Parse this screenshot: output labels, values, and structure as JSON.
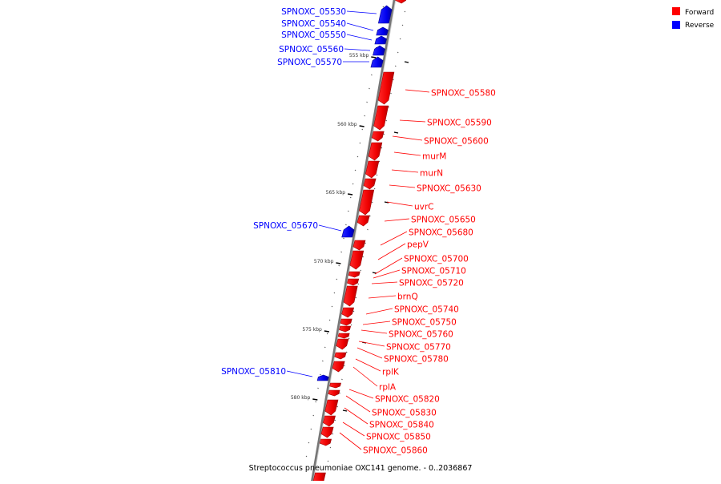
{
  "colors": {
    "forward": "#ff0000",
    "reverse": "#0000ff",
    "forward_dark": "#a00000",
    "reverse_dark": "#000090"
  },
  "legend": {
    "forward": "Forward",
    "reverse": "Reverse"
  },
  "footer": "Streptococcus pneumoniae OXC141 genome. - 0..2036867",
  "ticks": [
    "555 kbp",
    "560 kbp",
    "565 kbp",
    "570 kbp",
    "575 kbp",
    "580 kbp"
  ],
  "reverse_genes": [
    "SPNOXC_05530",
    "SPNOXC_05540",
    "SPNOXC_05550",
    "SPNOXC_05560",
    "SPNOXC_05570",
    "SPNOXC_05670",
    "SPNOXC_05810"
  ],
  "forward_genes": [
    "SPNOXC_05580",
    "SPNOXC_05590",
    "SPNOXC_05600",
    "murM",
    "murN",
    "SPNOXC_05630",
    "uvrC",
    "SPNOXC_05650",
    "SPNOXC_05680",
    "pepV",
    "SPNOXC_05700",
    "SPNOXC_05710",
    "SPNOXC_05720",
    "brnQ",
    "SPNOXC_05740",
    "SPNOXC_05750",
    "SPNOXC_05760",
    "SPNOXC_05770",
    "SPNOXC_05780",
    "rplK",
    "rplA",
    "SPNOXC_05820",
    "SPNOXC_05830",
    "SPNOXC_05840",
    "SPNOXC_05850",
    "SPNOXC_05860"
  ]
}
